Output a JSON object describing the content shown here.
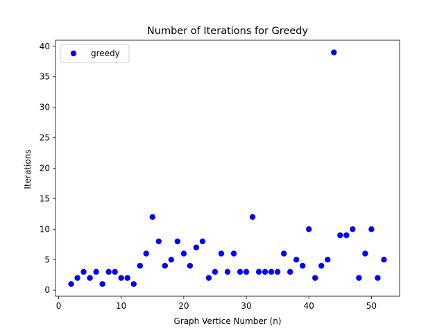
{
  "chart_data": {
    "type": "scatter",
    "title": "Number of Iterations for Greedy",
    "xlabel": "Graph Vertice Number (n)",
    "ylabel": "Iterations",
    "xlim": [
      -0.5,
      54.5
    ],
    "ylim": [
      -1.0,
      41.0
    ],
    "xticks": [
      0,
      10,
      20,
      30,
      40,
      50
    ],
    "yticks": [
      0,
      5,
      10,
      15,
      20,
      25,
      30,
      35,
      40
    ],
    "grid": false,
    "legend_position": "top-left",
    "series": [
      {
        "name": "greedy",
        "color": "#0000ff",
        "marker": "circle",
        "x": [
          2,
          3,
          4,
          5,
          6,
          7,
          8,
          9,
          10,
          11,
          12,
          13,
          14,
          15,
          16,
          17,
          18,
          19,
          20,
          21,
          22,
          23,
          24,
          25,
          26,
          27,
          28,
          29,
          30,
          31,
          32,
          33,
          34,
          35,
          36,
          37,
          38,
          39,
          40,
          41,
          42,
          43,
          44,
          45,
          46,
          47,
          48,
          49,
          50,
          51,
          52
        ],
        "y": [
          1,
          2,
          3,
          2,
          3,
          1,
          3,
          3,
          2,
          2,
          1,
          4,
          6,
          12,
          8,
          4,
          5,
          8,
          6,
          4,
          7,
          8,
          2,
          3,
          6,
          3,
          6,
          3,
          3,
          12,
          3,
          3,
          3,
          3,
          6,
          3,
          5,
          4,
          10,
          2,
          4,
          5,
          39,
          9,
          9,
          10,
          2,
          6,
          10,
          2,
          5
        ]
      }
    ]
  }
}
